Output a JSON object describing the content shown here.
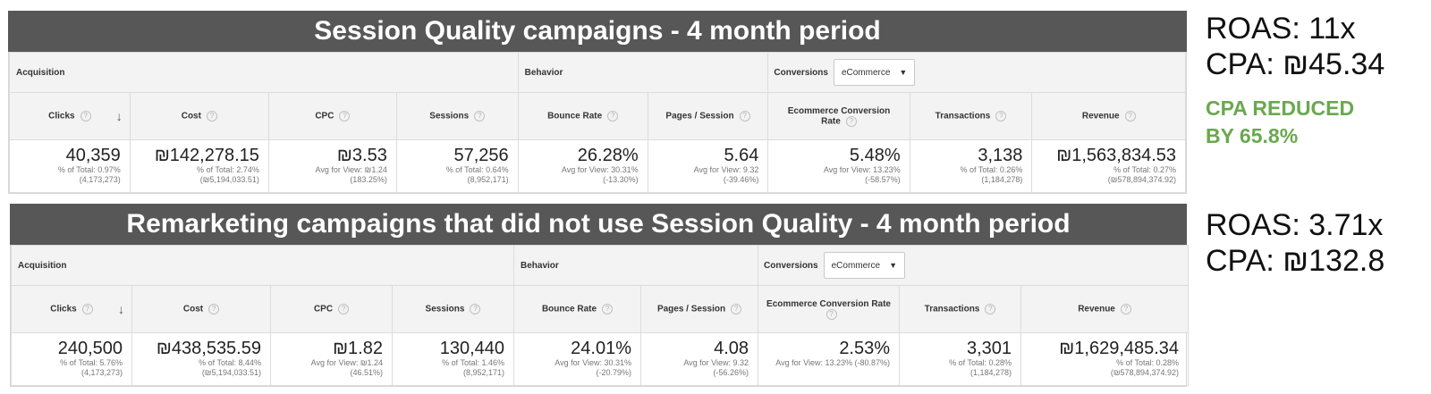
{
  "panels": [
    {
      "title": "Session Quality campaigns - 4 month period",
      "groups": {
        "acquisition": "Acquisition",
        "behavior": "Behavior",
        "conversions": "Conversions",
        "select_value": "eCommerce"
      },
      "columns": [
        "Clicks",
        "Cost",
        "CPC",
        "Sessions",
        "Bounce Rate",
        "Pages / Session",
        "Ecommerce Conversion Rate",
        "Transactions",
        "Revenue"
      ],
      "cells": [
        {
          "value": "40,359",
          "sub1": "% of Total: 0.97%",
          "sub2": "(4,173,273)"
        },
        {
          "value": "₪142,278.15",
          "sub1": "% of Total: 2.74%",
          "sub2": "(₪5,194,033.51)"
        },
        {
          "value": "₪3.53",
          "sub1": "Avg for View: ₪1.24",
          "sub2": "(183.25%)"
        },
        {
          "value": "57,256",
          "sub1": "% of Total: 0.64%",
          "sub2": "(8,952,171)"
        },
        {
          "value": "26.28%",
          "sub1": "Avg for View: 30.31%",
          "sub2": "(-13.30%)"
        },
        {
          "value": "5.64",
          "sub1": "Avg for View: 9.32",
          "sub2": "(-39.46%)"
        },
        {
          "value": "5.48%",
          "sub1": "Avg for View: 13.23%",
          "sub2": "(-58.57%)"
        },
        {
          "value": "3,138",
          "sub1": "% of Total: 0.26%",
          "sub2": "(1,184,278)"
        },
        {
          "value": "₪1,563,834.53",
          "sub1": "% of Total: 0.27%",
          "sub2": "(₪578,894,374.92)"
        }
      ]
    },
    {
      "title": "Remarketing campaigns that did not use Session Quality - 4 month period",
      "groups": {
        "acquisition": "Acquisition",
        "behavior": "Behavior",
        "conversions": "Conversions",
        "select_value": "eCommerce"
      },
      "columns": [
        "Clicks",
        "Cost",
        "CPC",
        "Sessions",
        "Bounce Rate",
        "Pages / Session",
        "Ecommerce Conversion Rate",
        "Transactions",
        "Revenue"
      ],
      "cells": [
        {
          "value": "240,500",
          "sub1": "% of Total: 5.76%",
          "sub2": "(4,173,273)"
        },
        {
          "value": "₪438,535.59",
          "sub1": "% of Total: 8.44%",
          "sub2": "(₪5,194,033.51)"
        },
        {
          "value": "₪1.82",
          "sub1": "Avg for View: ₪1.24",
          "sub2": "(46.51%)"
        },
        {
          "value": "130,440",
          "sub1": "% of Total: 1.46%",
          "sub2": "(8,952,171)"
        },
        {
          "value": "24.01%",
          "sub1": "Avg for View: 30.31%",
          "sub2": "(-20.79%)"
        },
        {
          "value": "4.08",
          "sub1": "Avg for View: 9.32",
          "sub2": "(-56.26%)"
        },
        {
          "value": "2.53%",
          "sub1": "Avg for View: 13.23% (-80.87%)",
          "sub2": ""
        },
        {
          "value": "3,301",
          "sub1": "% of Total: 0.28%",
          "sub2": "(1,184,278)"
        },
        {
          "value": "₪1,629,485.34",
          "sub1": "% of Total: 0.28%",
          "sub2": "(₪578,894,374.92)"
        }
      ]
    }
  ],
  "side": {
    "top": {
      "roas": "ROAS: 11x",
      "cpa": "CPA: ₪45.34",
      "note_line1": "CPA REDUCED",
      "note_line2": "BY 65.8%"
    },
    "bottom": {
      "roas": "ROAS: 3.71x",
      "cpa": "CPA: ₪132.8"
    }
  },
  "colors": {
    "title_bar": "#575757",
    "note": "#6aa84f"
  },
  "icons": {
    "help": "question-circle-icon",
    "sort": "arrow-down-icon",
    "dropdown": "caret-down-icon"
  }
}
